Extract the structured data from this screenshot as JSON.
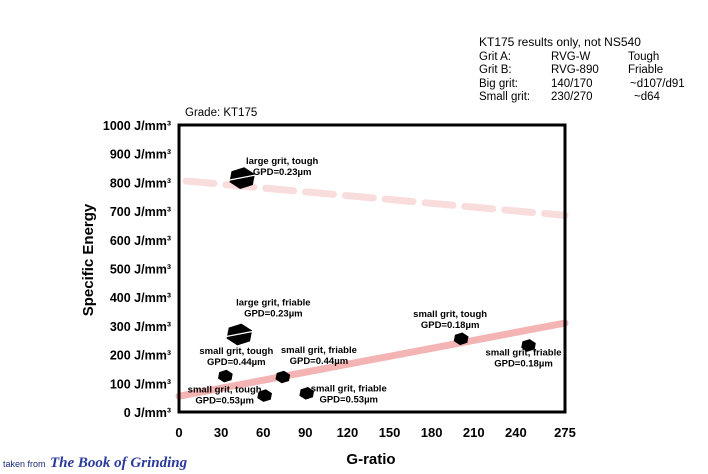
{
  "legend": {
    "title": "KT175 results only, not NS540",
    "rows": [
      {
        "label": "Grit A:",
        "value": "RVG-W",
        "note": "Tough"
      },
      {
        "label": "Grit B:",
        "value": "RVG-890",
        "note": "Friable"
      },
      {
        "label": "Big grit:",
        "value": "140/170",
        "note": "~d107/d91"
      },
      {
        "label": "Small grit:",
        "value": "230/270",
        "note": "~d64"
      }
    ]
  },
  "grade_label": "Grade: KT175",
  "credit": {
    "prefix": "taken from",
    "book": "The Book of Grinding"
  },
  "chart_data": {
    "type": "scatter",
    "xlabel": "G-ratio",
    "ylabel": "Specific Energy",
    "xlim": [
      0,
      275
    ],
    "ylim": [
      0,
      1000
    ],
    "xticks": [
      "0",
      "30",
      "60",
      "90",
      "120",
      "150",
      "180",
      "210",
      "240",
      "275"
    ],
    "xtick_values": [
      0,
      30,
      60,
      90,
      120,
      150,
      180,
      210,
      240,
      275
    ],
    "yticks": [
      {
        "value": 0,
        "label": "0 J/mm³"
      },
      {
        "value": 100,
        "label": "100 J/mm³"
      },
      {
        "value": 200,
        "label": "200 J/mm³"
      },
      {
        "value": 300,
        "label": "300 J/mm³"
      },
      {
        "value": 400,
        "label": "400 J/mm³"
      },
      {
        "value": 500,
        "label": "500 J/mm³"
      },
      {
        "value": 600,
        "label": "600 J/mm³"
      },
      {
        "value": 700,
        "label": "700 J/mm³"
      },
      {
        "value": 800,
        "label": "800 J/mm³"
      },
      {
        "value": 900,
        "label": "900 J/mm³"
      },
      {
        "value": 1000,
        "label": "1000 J/mm³"
      }
    ],
    "grid": false,
    "points": [
      {
        "x": 45,
        "y": 815,
        "size": "large",
        "lines": [
          "large grit, tough",
          "GPD=0.23µm"
        ]
      },
      {
        "x": 43,
        "y": 270,
        "size": "large",
        "lines": [
          "large grit, friable",
          "GPD=0.23µm"
        ]
      },
      {
        "x": 33,
        "y": 125,
        "size": "small",
        "lines": [
          "small grit, tough",
          "GPD=0.44µm"
        ]
      },
      {
        "x": 74,
        "y": 122,
        "size": "small",
        "lines": [
          "small grit, friable",
          "GPD=0.44µm"
        ]
      },
      {
        "x": 61,
        "y": 57,
        "size": "small",
        "lines": [
          "small grit, tough",
          "GPD=0.53µm"
        ]
      },
      {
        "x": 91,
        "y": 65,
        "size": "small",
        "lines": [
          "small grit, friable",
          "GPD=0.53µm"
        ]
      },
      {
        "x": 201,
        "y": 255,
        "size": "small",
        "lines": [
          "small grit, tough",
          "GPD=0.18µm"
        ]
      },
      {
        "x": 249,
        "y": 232,
        "size": "small",
        "lines": [
          "small grit, friable",
          "GPD=0.18µm"
        ]
      }
    ],
    "trend_lines": [
      {
        "style": "dashed",
        "color": "#f9dcdc",
        "x": [
          5,
          275
        ],
        "y": [
          805,
          685
        ]
      },
      {
        "style": "solid",
        "color": "#f4b4b4",
        "x": [
          0,
          275
        ],
        "y": [
          55,
          310
        ]
      }
    ]
  }
}
